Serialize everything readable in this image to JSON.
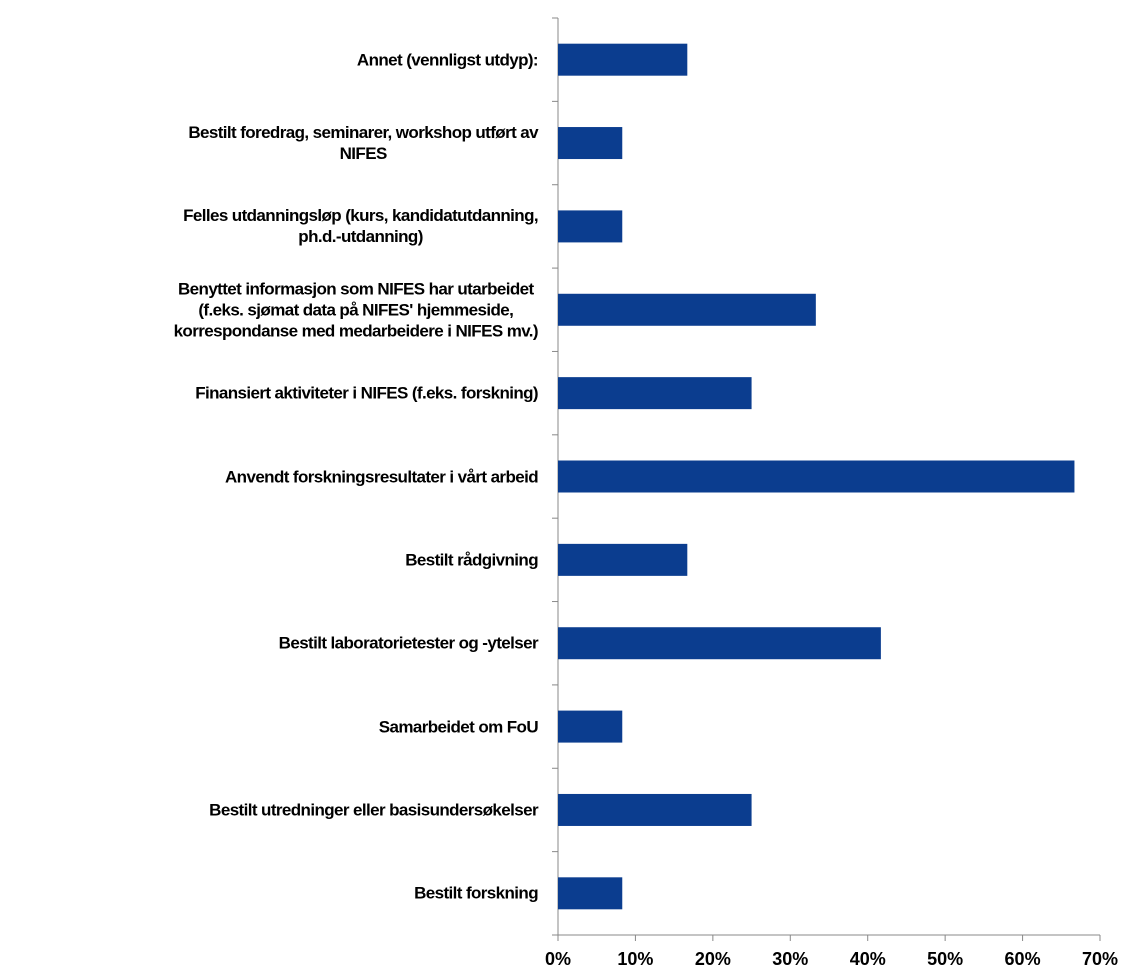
{
  "chart_data": {
    "type": "barh",
    "categories": [
      "Annet (vennligst utdyp):",
      "Bestilt foredrag, seminarer, workshop utført av\nNIFES",
      "Felles utdanningsløp (kurs, kandidatutdanning,\nph.d.-utdanning)",
      "Benyttet informasjon som NIFES har utarbeidet\n(f.eks. sjømat data på NIFES' hjemmeside,\nkorrespondanse med medarbeidere i NIFES mv.)",
      "Finansiert aktiviteter i NIFES (f.eks. forskning)",
      "Anvendt forskningsresultater i vårt arbeid",
      "Bestilt rådgivning",
      "Bestilt laboratorietester og -ytelser",
      "Samarbeidet om FoU",
      "Bestilt utredninger eller basisundersøkelser",
      "Bestilt forskning"
    ],
    "values": [
      16.7,
      8.3,
      8.3,
      33.3,
      25,
      66.7,
      16.7,
      41.7,
      8.3,
      25,
      8.3
    ],
    "color": "#0b3d8f",
    "xlim": [
      0,
      70
    ],
    "xticks": [
      {
        "value": 0,
        "label": "0%"
      },
      {
        "value": 10,
        "label": "10%"
      },
      {
        "value": 20,
        "label": "20%"
      },
      {
        "value": 30,
        "label": "30%"
      },
      {
        "value": 40,
        "label": "40%"
      },
      {
        "value": 50,
        "label": "50%"
      },
      {
        "value": 60,
        "label": "60%"
      },
      {
        "value": 70,
        "label": "70%"
      }
    ]
  }
}
